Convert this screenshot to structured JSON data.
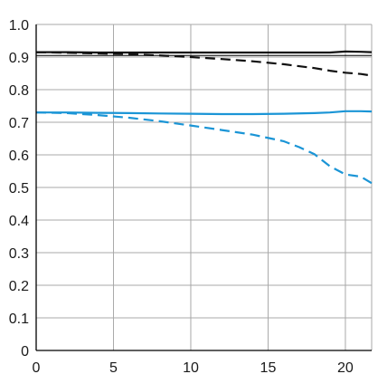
{
  "chart_data": {
    "type": "line",
    "title": "",
    "xlabel": "",
    "ylabel": "",
    "xlim": [
      0,
      21.7
    ],
    "ylim": [
      0,
      1.0
    ],
    "grid": true,
    "x_ticks": [
      "0",
      "5",
      "10",
      "15",
      "20"
    ],
    "y_ticks": [
      "0",
      "0.1",
      "0.2",
      "0.3",
      "0.4",
      "0.5",
      "0.6",
      "0.7",
      "0.8",
      "0.9",
      "1.0"
    ],
    "reference_lines": [
      {
        "y": 0.905,
        "color": "#000000"
      }
    ],
    "series": [
      {
        "color": "#111111",
        "style": "solid",
        "x": [
          0,
          2,
          4,
          6,
          8,
          10,
          12,
          14,
          16,
          18,
          19,
          20,
          21,
          21.7
        ],
        "y": [
          0.915,
          0.915,
          0.914,
          0.914,
          0.914,
          0.914,
          0.914,
          0.914,
          0.914,
          0.914,
          0.914,
          0.917,
          0.916,
          0.915
        ]
      },
      {
        "color": "#111111",
        "style": "dashed",
        "x": [
          0,
          2,
          4,
          6,
          8,
          10,
          12,
          14,
          16,
          18,
          19,
          20,
          21,
          21.7
        ],
        "y": [
          0.915,
          0.913,
          0.911,
          0.909,
          0.905,
          0.9,
          0.894,
          0.887,
          0.878,
          0.866,
          0.858,
          0.852,
          0.848,
          0.843
        ]
      },
      {
        "color": "#1b95d6",
        "style": "solid",
        "x": [
          0,
          2,
          4,
          6,
          8,
          10,
          12,
          14,
          16,
          18,
          19,
          20,
          21,
          21.7
        ],
        "y": [
          0.73,
          0.73,
          0.729,
          0.728,
          0.727,
          0.726,
          0.725,
          0.725,
          0.726,
          0.728,
          0.73,
          0.734,
          0.734,
          0.733
        ]
      },
      {
        "color": "#1b95d6",
        "style": "dashed",
        "x": [
          0,
          2,
          4,
          6,
          8,
          10,
          12,
          14,
          16,
          17,
          18,
          19,
          20,
          21,
          21.7
        ],
        "y": [
          0.73,
          0.728,
          0.722,
          0.714,
          0.703,
          0.69,
          0.676,
          0.662,
          0.642,
          0.624,
          0.602,
          0.565,
          0.54,
          0.533,
          0.513
        ]
      }
    ]
  }
}
